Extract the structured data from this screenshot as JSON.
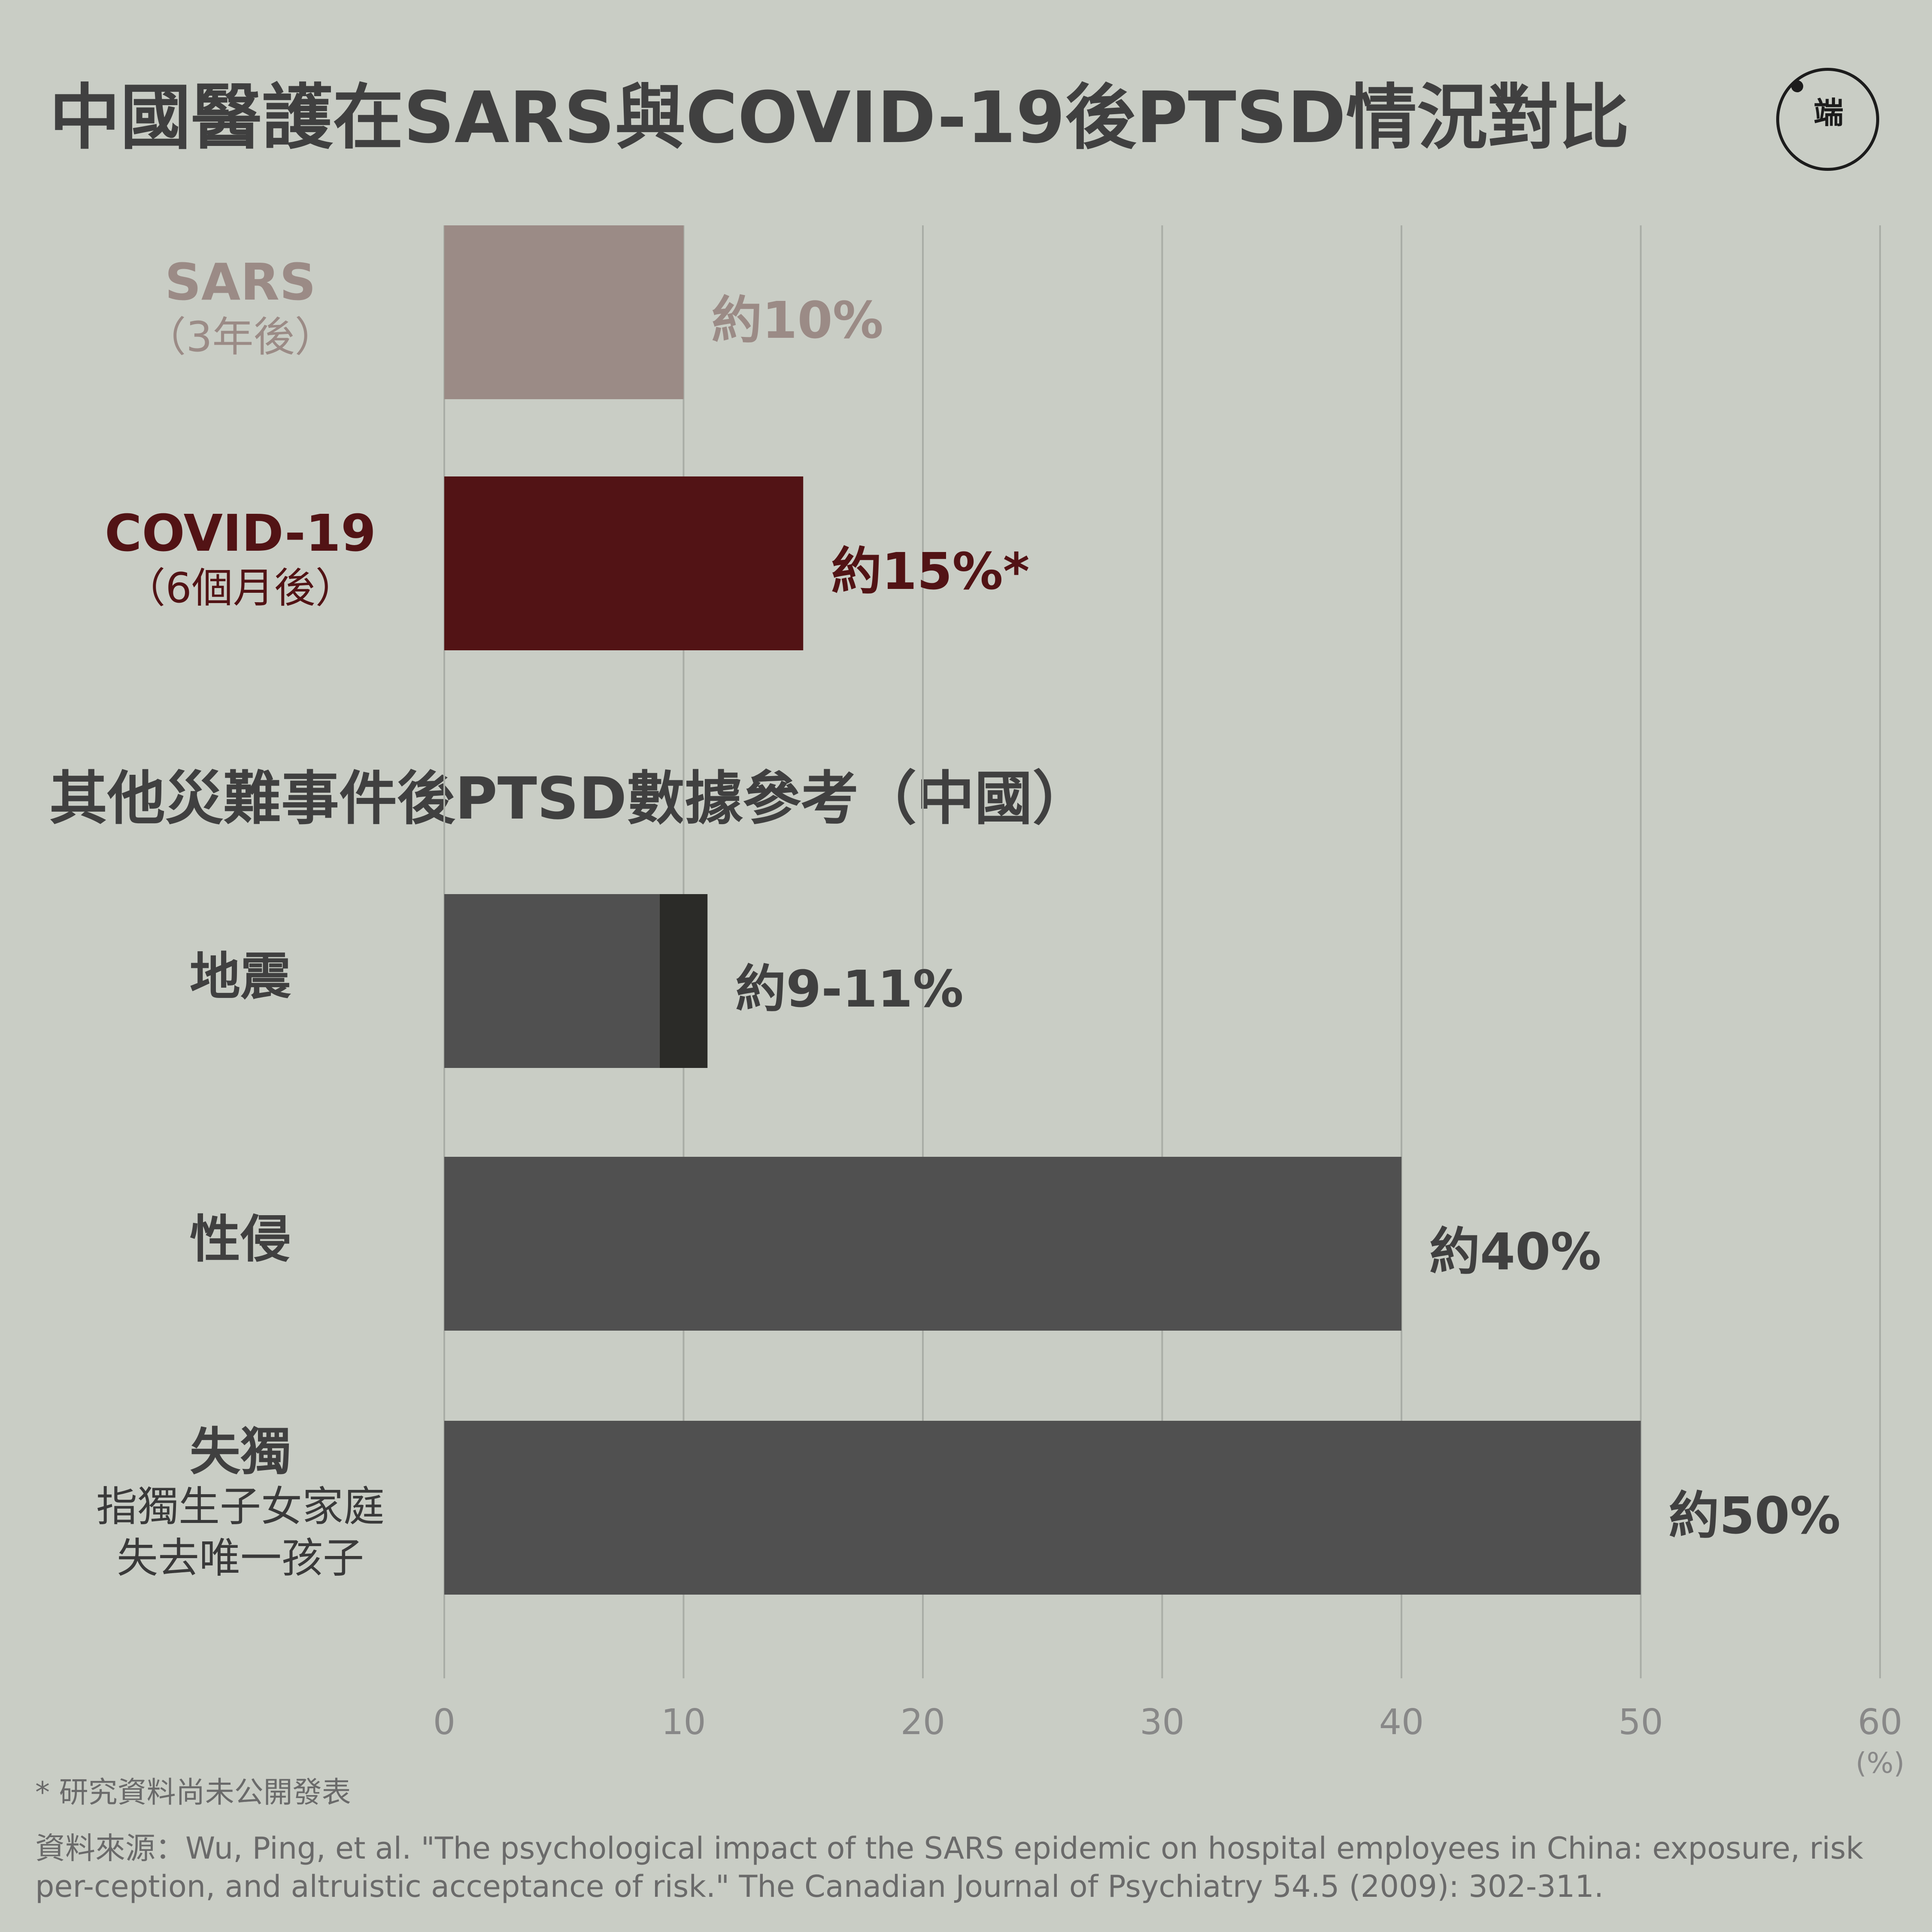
{
  "title": "中國醫護在SARS與COVID-19後PTSD情況對比",
  "subtitle": "其他災難事件後PTSD數據參考（中國）",
  "logo": {
    "text": "端",
    "icon": "initium-logo"
  },
  "chart_data": {
    "type": "bar",
    "orientation": "horizontal",
    "x_unit": "(%)",
    "xlim": [
      0,
      60
    ],
    "x_ticks": [
      "0",
      "10",
      "20",
      "30",
      "40",
      "50",
      "60"
    ],
    "grid": true,
    "groups": [
      {
        "heading": "",
        "bars": [
          {
            "label": "SARS",
            "sublabel": "（3年後）",
            "value": 10,
            "value_label": "約10%",
            "color": "#9b8b86",
            "label_color": "#9b8b86"
          },
          {
            "label": "COVID-19",
            "sublabel": "（6個月後）",
            "value": 15,
            "value_label": "約15%*",
            "color": "#521315",
            "label_color": "#521315"
          }
        ]
      },
      {
        "heading": "其他災難事件後PTSD數據參考（中國）",
        "bars": [
          {
            "label": "地震",
            "sublabel": "",
            "value": 9,
            "range_high": 11,
            "value_label": "約9-11%",
            "color": "#505050",
            "range_color": "#2b2b28",
            "label_color": "#404040"
          },
          {
            "label": "性侵",
            "sublabel": "",
            "value": 40,
            "value_label": "約40%",
            "color": "#505050",
            "label_color": "#404040"
          },
          {
            "label": "失獨",
            "sublabel": "指獨生子女家庭\n失去唯一孩子",
            "value": 50,
            "value_label": "約50%",
            "color": "#505050",
            "label_color": "#404040"
          }
        ]
      }
    ]
  },
  "footnote": "* 研究資料尚未公開發表",
  "source": "資料來源：Wu, Ping, et al. \"The psychological impact of the SARS epidemic on hospital employees in China: exposure, risk per-ception, and altruistic acceptance of risk.\" The Canadian Journal of Psychiatry 54.5 (2009): 302-311."
}
